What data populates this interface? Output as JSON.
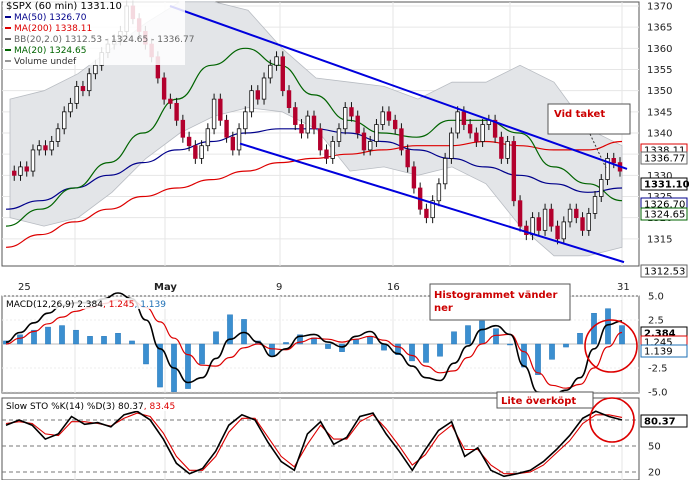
{
  "chart_data": [
    {
      "type": "candlestick",
      "panel": "price",
      "title": "$SPX (60 min) 1331.10",
      "legend": [
        {
          "name": "MA(50) 1326.70",
          "color": "#00008b"
        },
        {
          "name": "MA(200) 1338.11",
          "color": "#dd0000"
        },
        {
          "name": "BB(20,2.0) 1312.53 - 1324.65 - 1336.77",
          "color": "#666666"
        },
        {
          "name": "MA(20) 1324.65",
          "color": "#006400"
        },
        {
          "name": "Volume undef",
          "color": "#999999"
        }
      ],
      "x_ticks": [
        "25",
        "May",
        "9",
        "16",
        "31"
      ],
      "y_ticks": [
        1370,
        1365,
        1360,
        1355,
        1350,
        1345,
        1340,
        1335,
        1330,
        1325,
        1320,
        1315
      ],
      "ylim": [
        1310,
        1372
      ],
      "price_tags": [
        {
          "value": "1338.11",
          "color": "#dd0000"
        },
        {
          "value": "1336.77",
          "color": "#666666"
        },
        {
          "value": "1331.10",
          "color": "#000000"
        },
        {
          "value": "1326.70",
          "color": "#00008b"
        },
        {
          "value": "1324.65",
          "color": "#006400"
        },
        {
          "value": "1312.53",
          "color": "#666666"
        }
      ],
      "closes": [
        1331,
        1330,
        1332,
        1331,
        1336,
        1337,
        1336,
        1338,
        1341,
        1345,
        1347,
        1351,
        1350,
        1354,
        1356,
        1359,
        1361,
        1362,
        1364,
        1370,
        1367,
        1364,
        1361,
        1358,
        1353,
        1348,
        1347,
        1343,
        1339,
        1337,
        1334,
        1337,
        1341,
        1348,
        1343,
        1339,
        1336,
        1341,
        1345,
        1350,
        1348,
        1353,
        1356,
        1358,
        1350,
        1346,
        1342,
        1340,
        1344,
        1341,
        1336,
        1334,
        1338,
        1341,
        1346,
        1344,
        1340,
        1336,
        1338,
        1342,
        1345,
        1343,
        1341,
        1336,
        1332,
        1327,
        1322,
        1320,
        1324,
        1328,
        1334,
        1340,
        1345,
        1342,
        1340,
        1338,
        1342,
        1343,
        1339,
        1334,
        1338,
        1324,
        1318,
        1316,
        1320,
        1317,
        1322,
        1318,
        1315,
        1319,
        1322,
        1320,
        1317,
        1321,
        1325,
        1329,
        1334,
        1333,
        1331
      ],
      "ma50": [
        1322,
        1324,
        1327,
        1330,
        1333,
        1336,
        1338,
        1340,
        1341,
        1341,
        1340,
        1338,
        1336,
        1334,
        1332,
        1330,
        1328,
        1326,
        1327
      ],
      "ma200": [
        1313,
        1316,
        1319,
        1322,
        1325,
        1327,
        1329,
        1331,
        1333,
        1334,
        1335,
        1336,
        1337,
        1337,
        1338,
        1337,
        1336,
        1336,
        1338
      ],
      "ma20": [
        1318,
        1322,
        1327,
        1333,
        1340,
        1348,
        1356,
        1360,
        1356,
        1349,
        1343,
        1340,
        1339,
        1343,
        1343,
        1340,
        1332,
        1328,
        1324
      ],
      "bb_upper": [
        1348,
        1350,
        1354,
        1360,
        1366,
        1371,
        1371,
        1369,
        1360,
        1353,
        1352,
        1351,
        1348,
        1352,
        1352,
        1356,
        1352,
        1341,
        1337
      ],
      "bb_lower": [
        1320,
        1318,
        1320,
        1326,
        1334,
        1340,
        1344,
        1346,
        1345,
        1341,
        1331,
        1332,
        1330,
        1332,
        1328,
        1318,
        1311,
        1311,
        1313
      ],
      "channel_upper": [
        [
          1370,
          "21"
        ],
        [
          1330,
          "end"
        ]
      ],
      "channel_lower": [
        [
          1337,
          "May+"
        ],
        [
          1311,
          "end"
        ]
      ],
      "annotations": [
        "Vid taket"
      ]
    },
    {
      "type": "line+histogram",
      "panel": "macd",
      "legend": [
        {
          "name": "MACD(12,26,9)",
          "value": "2.384",
          "color": "#000000"
        },
        {
          "name": "",
          "value": "1.245",
          "color": "#dd0000"
        },
        {
          "name": "",
          "value": "1.139",
          "color": "#1e6fb5"
        }
      ],
      "y_ticks": [
        "5.0",
        "2.5",
        "0.0",
        "-2.5",
        "-5.0"
      ],
      "ylim": [
        -6.5,
        6.5
      ],
      "price_tags": [
        {
          "value": "2.384",
          "color": "#000000"
        },
        {
          "value": "1.245",
          "color": "#dd0000"
        },
        {
          "value": "1.139",
          "color": "#1e6fb5"
        }
      ],
      "macd": [
        0.2,
        1.2,
        2.2,
        3.2,
        4.0,
        4.3,
        4.3,
        4.7,
        5.3,
        4.7,
        2.5,
        -0.5,
        -2.5,
        -4.0,
        -3.5,
        -1.5,
        0.5,
        1.2,
        0.2,
        -1.3,
        -0.5,
        0.8,
        1.0,
        0.2,
        -0.3,
        0.8,
        1.3,
        0.0,
        -1.0,
        -2.3,
        -3.5,
        -3.8,
        -2.0,
        -0.2,
        1.5,
        1.9,
        1.0,
        -2.3,
        -5.0,
        -5.3,
        -4.8,
        -3.5,
        -0.5,
        2.0,
        2.4
      ],
      "signal": [
        0.0,
        0.6,
        1.3,
        2.1,
        2.8,
        3.4,
        3.8,
        4.2,
        4.6,
        4.5,
        3.8,
        2.3,
        0.6,
        -1.1,
        -2.2,
        -2.3,
        -1.4,
        -0.4,
        0.0,
        -0.5,
        -0.6,
        0.2,
        0.6,
        0.5,
        0.2,
        0.5,
        0.8,
        0.4,
        -0.3,
        -1.2,
        -2.3,
        -3.0,
        -2.8,
        -1.4,
        0.0,
        0.9,
        1.0,
        -0.8,
        -3.0,
        -4.3,
        -4.6,
        -4.2,
        -2.5,
        -0.3,
        1.2
      ],
      "annotations": [
        "Histogrammet vänder ner"
      ]
    },
    {
      "type": "line",
      "panel": "stochastic",
      "legend": [
        {
          "name": "Slow STO %K(14) %D(3)",
          "value": "80.37",
          "color": "#000000"
        },
        {
          "name": "",
          "value": "83.45",
          "color": "#dd0000"
        }
      ],
      "y_ticks": [
        "50",
        "20"
      ],
      "ylim": [
        15,
        100
      ],
      "price_tags": [
        {
          "value": "80.37",
          "color": "#000000"
        }
      ],
      "k": [
        74,
        80,
        74,
        58,
        64,
        84,
        75,
        77,
        72,
        86,
        90,
        80,
        58,
        30,
        18,
        24,
        44,
        74,
        86,
        80,
        54,
        32,
        22,
        64,
        78,
        52,
        60,
        84,
        88,
        64,
        44,
        22,
        46,
        68,
        78,
        38,
        48,
        22,
        15,
        18,
        22,
        32,
        46,
        62,
        82,
        90,
        84,
        80
      ],
      "d": [
        76,
        78,
        76,
        64,
        62,
        78,
        78,
        76,
        73,
        82,
        88,
        84,
        65,
        38,
        22,
        22,
        38,
        66,
        82,
        82,
        60,
        38,
        26,
        52,
        74,
        58,
        58,
        78,
        86,
        70,
        50,
        28,
        40,
        62,
        74,
        46,
        46,
        28,
        18,
        18,
        20,
        28,
        42,
        56,
        76,
        86,
        86,
        83
      ],
      "annotations": [
        "Lite överköpt"
      ]
    }
  ]
}
